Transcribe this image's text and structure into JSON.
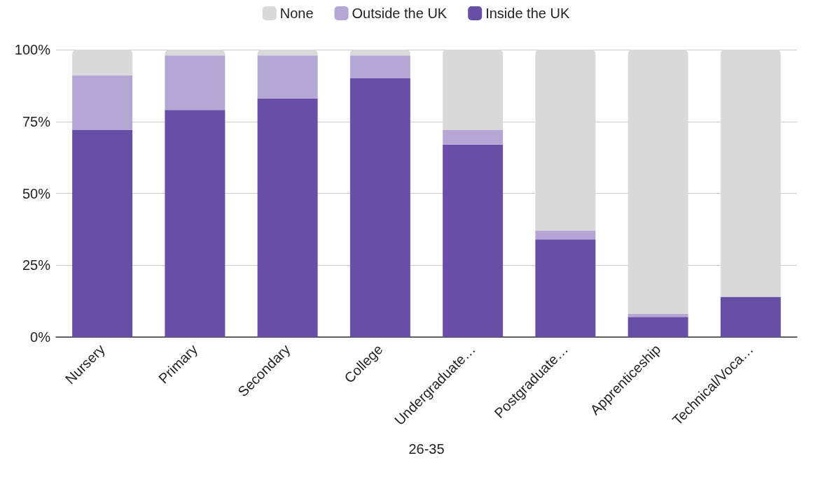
{
  "chart_data": {
    "type": "bar",
    "stacked": true,
    "xlabel": "26-35",
    "categories": [
      "Nursery",
      "Primary",
      "Secondary",
      "College",
      "Undergraduate…",
      "Postgraduate…",
      "Apprenticeship",
      "Technical/Voca…"
    ],
    "series": [
      {
        "name": "Inside the UK",
        "color": "#674ea7",
        "values": [
          72,
          79,
          83,
          90,
          67,
          34,
          7,
          14
        ]
      },
      {
        "name": "Outside the UK",
        "color": "#b4a7d6",
        "values": [
          19,
          19,
          15,
          8,
          5,
          3,
          1,
          0
        ]
      },
      {
        "name": "None",
        "color": "#d9d9d9",
        "values": [
          9,
          2,
          2,
          2,
          28,
          63,
          92,
          86
        ]
      }
    ],
    "ylim": [
      0,
      100
    ],
    "yticks": [
      {
        "value": 0,
        "label": "0%"
      },
      {
        "value": 25,
        "label": "25%"
      },
      {
        "value": 50,
        "label": "50%"
      },
      {
        "value": 75,
        "label": "75%"
      },
      {
        "value": 100,
        "label": "100%"
      }
    ],
    "grid": "y",
    "legend": "top"
  }
}
